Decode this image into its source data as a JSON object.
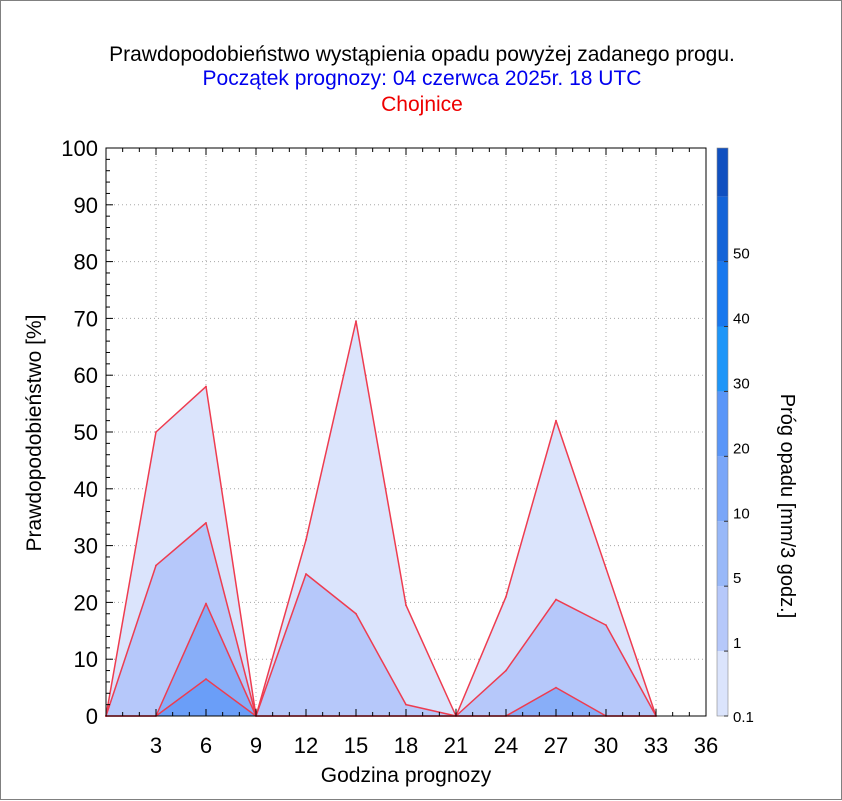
{
  "header": {
    "title": "Prawdopodobieństwo wystąpienia opadu powyżej zadanego progu.",
    "subtitle": "Początek prognozy: 04 czerwca 2025r. 18 UTC",
    "location": "Chojnice"
  },
  "colors": {
    "subtitle": "#0000ee",
    "location": "#ee0000",
    "outline": "#ee3c50",
    "axis": "#000000",
    "grid": "#a8a8a8"
  },
  "chart_data": {
    "type": "area",
    "xlabel": "Godzina prognozy",
    "ylabel": "Prawdopodobieństwo [%]",
    "xlim": [
      0,
      36
    ],
    "ylim": [
      0,
      100
    ],
    "x": [
      0,
      3,
      6,
      9,
      12,
      15,
      18,
      21,
      24,
      27,
      30,
      33
    ],
    "x_ticks": [
      3,
      6,
      9,
      12,
      15,
      18,
      21,
      24,
      27,
      30,
      33,
      36
    ],
    "y_ticks": [
      0,
      10,
      20,
      30,
      40,
      50,
      60,
      70,
      80,
      90,
      100
    ],
    "grid": true,
    "series": [
      {
        "name": "0.1",
        "color": "#dbe4fc",
        "values": [
          0,
          50,
          58,
          0,
          31,
          69.5,
          19.5,
          0,
          21,
          52,
          26,
          0
        ]
      },
      {
        "name": "1",
        "color": "#b6c8fa",
        "values": [
          0,
          26.5,
          34,
          0,
          25,
          18,
          2,
          0,
          8,
          20.5,
          16,
          0
        ]
      },
      {
        "name": "5",
        "color": "#88aef8",
        "values": [
          0,
          0,
          19.8,
          0,
          0,
          0,
          0,
          0,
          0,
          5,
          0,
          0
        ]
      },
      {
        "name": "10",
        "color": "#6a9ef8",
        "values": [
          0,
          0,
          6.5,
          0,
          0,
          0,
          0,
          0,
          0,
          0,
          0,
          0
        ]
      }
    ],
    "colorbar": {
      "label": "Próg opadu [mm/3 godz.]",
      "tick_labels": [
        "0.1",
        "1",
        "5",
        "10",
        "20",
        "30",
        "40",
        "50"
      ],
      "colors": [
        "#dbe4fc",
        "#b6c8fa",
        "#98b8f8",
        "#7aa6f8",
        "#5a96f8",
        "#1e96f8",
        "#1878ee",
        "#1464d8",
        "#1050c0"
      ]
    }
  }
}
